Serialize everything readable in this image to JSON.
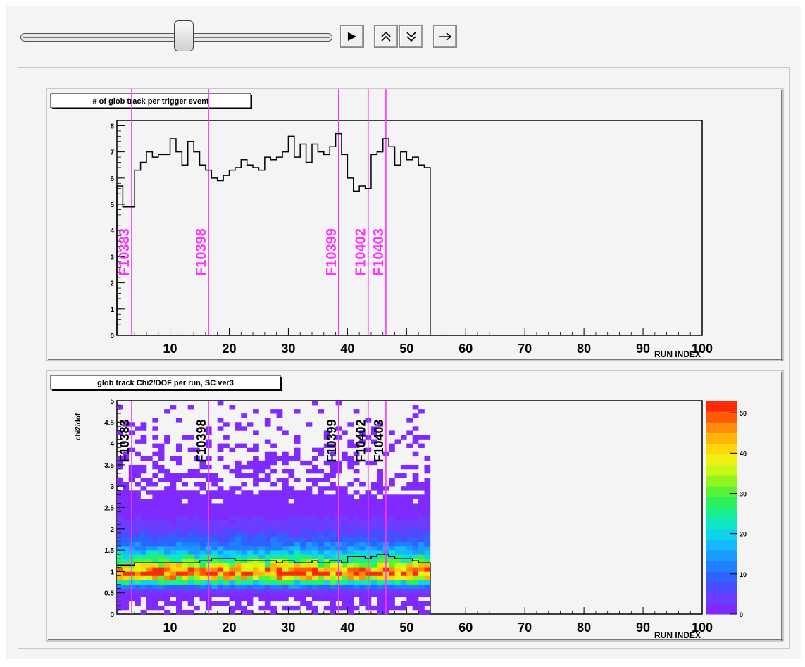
{
  "controls": {
    "slider_value": 0.5,
    "buttons": [
      {
        "name": "play-button",
        "icon": "play-icon",
        "glyph": "▶"
      },
      {
        "name": "step-up-button",
        "icon": "double-chevron-up-icon",
        "glyph": "⌃"
      },
      {
        "name": "step-down-button",
        "icon": "double-chevron-down-icon",
        "glyph": "⌄"
      },
      {
        "name": "next-button",
        "icon": "arrow-right-icon",
        "glyph": "→"
      }
    ]
  },
  "chart_data": [
    {
      "type": "line",
      "title": "# of glob track per trigger event",
      "xlabel": "RUN INDEX",
      "ylabel": "",
      "xlim": [
        1,
        100
      ],
      "ylim": [
        0,
        8.2
      ],
      "x_ticks": [
        10,
        20,
        30,
        40,
        50,
        60,
        70,
        80,
        90,
        100
      ],
      "y_ticks": [
        0,
        1,
        2,
        3,
        4,
        5,
        6,
        7,
        8
      ],
      "values": [
        5.7,
        4.9,
        4.9,
        6.3,
        6.6,
        7.0,
        6.8,
        6.9,
        6.9,
        7.5,
        7.0,
        6.5,
        7.4,
        7.0,
        6.5,
        6.3,
        6.0,
        5.9,
        6.1,
        6.3,
        6.4,
        6.7,
        6.5,
        6.4,
        6.3,
        6.8,
        6.7,
        6.8,
        7.0,
        7.6,
        6.8,
        7.3,
        6.6,
        7.3,
        7.0,
        6.9,
        7.2,
        7.7,
        6.9,
        6.0,
        5.5,
        5.7,
        5.6,
        6.9,
        7.0,
        7.5,
        7.2,
        6.5,
        7.0,
        6.7,
        6.8,
        6.5,
        6.4
      ],
      "markers": [
        {
          "label": "F10383",
          "x": 3.5
        },
        {
          "label": "F10398",
          "x": 16.5
        },
        {
          "label": "F10399",
          "x": 38.5
        },
        {
          "label": "F10402",
          "x": 43.5
        },
        {
          "label": "F10403",
          "x": 46.5
        }
      ],
      "marker_color": "#ff33ff"
    },
    {
      "type": "heatmap",
      "title": "glob track Chi2/DOF per run, SC ver3",
      "xlabel": "RUN INDEX",
      "ylabel": "chi2/dof",
      "xlim": [
        1,
        100
      ],
      "ylim": [
        0,
        5
      ],
      "x_ticks": [
        10,
        20,
        30,
        40,
        50,
        60,
        70,
        80,
        90,
        100
      ],
      "y_ticks": [
        0,
        0.5,
        1,
        1.5,
        2,
        2.5,
        3,
        3.5,
        4,
        4.5,
        5
      ],
      "y_tick_labels": [
        "0",
        "0.5",
        "1",
        "1.5",
        "2",
        "2.5",
        "3",
        "3.5",
        "4",
        "4.5",
        "5"
      ],
      "filled_runs": [
        1,
        53
      ],
      "peak_chi2": 1.0,
      "zlim": [
        0,
        53
      ],
      "z_ticks": [
        0,
        10,
        20,
        30,
        40,
        50
      ],
      "profile": [
        1.15,
        1.15,
        1.15,
        1.2,
        1.2,
        1.2,
        1.2,
        1.2,
        1.2,
        1.2,
        1.2,
        1.2,
        1.2,
        1.2,
        1.25,
        1.25,
        1.3,
        1.3,
        1.3,
        1.3,
        1.25,
        1.25,
        1.25,
        1.25,
        1.25,
        1.25,
        1.25,
        1.2,
        1.25,
        1.25,
        1.2,
        1.2,
        1.2,
        1.25,
        1.2,
        1.2,
        1.25,
        1.25,
        1.2,
        1.35,
        1.35,
        1.35,
        1.3,
        1.35,
        1.4,
        1.4,
        1.35,
        1.3,
        1.3,
        1.3,
        1.25,
        1.2,
        1.2
      ],
      "markers": [
        {
          "label": "F10383",
          "x": 3.5
        },
        {
          "label": "F10398",
          "x": 16.5
        },
        {
          "label": "F10399",
          "x": 38.5
        },
        {
          "label": "F10402",
          "x": 43.5
        },
        {
          "label": "F10403",
          "x": 46.5
        }
      ],
      "marker_color": "#ff33ff",
      "palette": [
        "#7f2aff",
        "#6a3dff",
        "#4b4bff",
        "#2f63ff",
        "#1f7fff",
        "#1a9bff",
        "#16b8ff",
        "#10d2ea",
        "#10e6c2",
        "#18ef8f",
        "#2ef05c",
        "#5af238",
        "#93f520",
        "#c8f818",
        "#f2f010",
        "#ffd60a",
        "#ffb40a",
        "#ff8c0a",
        "#ff5a08",
        "#ff2a05"
      ]
    }
  ]
}
